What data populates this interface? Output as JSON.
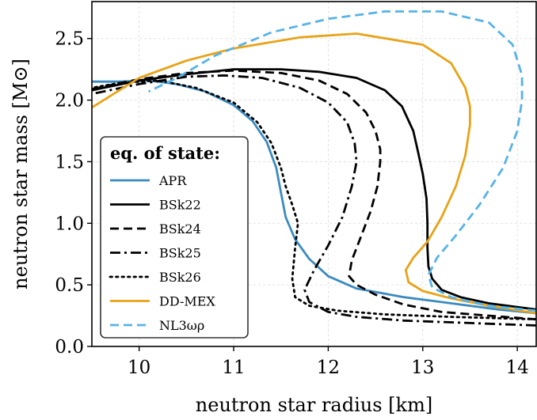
{
  "chart_data": {
    "type": "line",
    "xlabel": "neutron star radius [km]",
    "ylabel": "neutron star mass [M⊙]",
    "xlim": [
      9.5,
      14.2
    ],
    "ylim": [
      0.0,
      2.8
    ],
    "xticks": [
      10,
      11,
      12,
      13,
      14
    ],
    "yticks": [
      0.0,
      0.5,
      1.0,
      1.5,
      2.0,
      2.5
    ],
    "xtick_labels": [
      "10",
      "11",
      "12",
      "13",
      "14"
    ],
    "ytick_labels": [
      "0.0",
      "0.5",
      "1.0",
      "1.5",
      "2.0",
      "2.5"
    ],
    "grid": true,
    "legend_title": "eq. of state:",
    "legend_position": "middle-left",
    "series": [
      {
        "name": "APR",
        "color": "#3b8bc0",
        "dash": "solid",
        "points": [
          [
            14.2,
            0.27
          ],
          [
            13.8,
            0.3
          ],
          [
            13.2,
            0.36
          ],
          [
            12.8,
            0.4
          ],
          [
            12.3,
            0.47
          ],
          [
            12.0,
            0.57
          ],
          [
            11.8,
            0.71
          ],
          [
            11.65,
            0.87
          ],
          [
            11.55,
            1.05
          ],
          [
            11.5,
            1.25
          ],
          [
            11.45,
            1.45
          ],
          [
            11.35,
            1.66
          ],
          [
            11.2,
            1.83
          ],
          [
            11.0,
            1.96
          ],
          [
            10.7,
            2.07
          ],
          [
            10.4,
            2.13
          ],
          [
            10.1,
            2.16
          ],
          [
            9.8,
            2.15
          ],
          [
            9.5,
            2.15
          ]
        ]
      },
      {
        "name": "BSk22",
        "color": "#000000",
        "dash": "solid",
        "points": [
          [
            14.2,
            0.3
          ],
          [
            13.7,
            0.35
          ],
          [
            13.4,
            0.4
          ],
          [
            13.2,
            0.46
          ],
          [
            13.1,
            0.55
          ],
          [
            13.06,
            0.65
          ],
          [
            13.05,
            0.8
          ],
          [
            13.05,
            1.0
          ],
          [
            13.04,
            1.2
          ],
          [
            13.0,
            1.4
          ],
          [
            12.95,
            1.58
          ],
          [
            12.9,
            1.75
          ],
          [
            12.78,
            1.95
          ],
          [
            12.6,
            2.08
          ],
          [
            12.3,
            2.18
          ],
          [
            11.9,
            2.23
          ],
          [
            11.5,
            2.25
          ],
          [
            11.0,
            2.25
          ],
          [
            10.5,
            2.21
          ],
          [
            10.0,
            2.16
          ],
          [
            9.5,
            2.08
          ]
        ]
      },
      {
        "name": "BSk24",
        "color": "#000000",
        "dash": "dashed",
        "points": [
          [
            14.2,
            0.22
          ],
          [
            13.7,
            0.25
          ],
          [
            13.2,
            0.28
          ],
          [
            12.8,
            0.34
          ],
          [
            12.5,
            0.42
          ],
          [
            12.3,
            0.5
          ],
          [
            12.22,
            0.57
          ],
          [
            12.25,
            0.7
          ],
          [
            12.35,
            0.9
          ],
          [
            12.45,
            1.1
          ],
          [
            12.52,
            1.3
          ],
          [
            12.55,
            1.5
          ],
          [
            12.55,
            1.6
          ],
          [
            12.5,
            1.75
          ],
          [
            12.4,
            1.9
          ],
          [
            12.2,
            2.05
          ],
          [
            11.9,
            2.16
          ],
          [
            11.5,
            2.22
          ],
          [
            11.0,
            2.24
          ],
          [
            10.5,
            2.22
          ],
          [
            10.0,
            2.17
          ],
          [
            9.5,
            2.09
          ]
        ]
      },
      {
        "name": "BSk25",
        "color": "#000000",
        "dash": "dashdot",
        "points": [
          [
            14.2,
            0.17
          ],
          [
            13.5,
            0.19
          ],
          [
            12.8,
            0.21
          ],
          [
            12.3,
            0.24
          ],
          [
            12.0,
            0.28
          ],
          [
            11.8,
            0.36
          ],
          [
            11.75,
            0.46
          ],
          [
            11.85,
            0.62
          ],
          [
            12.0,
            0.82
          ],
          [
            12.15,
            1.05
          ],
          [
            12.25,
            1.3
          ],
          [
            12.3,
            1.5
          ],
          [
            12.28,
            1.65
          ],
          [
            12.2,
            1.82
          ],
          [
            12.0,
            1.98
          ],
          [
            11.7,
            2.1
          ],
          [
            11.3,
            2.18
          ],
          [
            10.9,
            2.2
          ],
          [
            10.5,
            2.19
          ],
          [
            10.0,
            2.13
          ],
          [
            9.5,
            2.05
          ]
        ]
      },
      {
        "name": "BSk26",
        "color": "#000000",
        "dash": "dotted",
        "points": [
          [
            14.2,
            0.22
          ],
          [
            13.3,
            0.24
          ],
          [
            12.6,
            0.26
          ],
          [
            12.1,
            0.29
          ],
          [
            11.8,
            0.33
          ],
          [
            11.65,
            0.4
          ],
          [
            11.62,
            0.55
          ],
          [
            11.65,
            0.8
          ],
          [
            11.68,
            1.0
          ],
          [
            11.62,
            1.15
          ],
          [
            11.55,
            1.3
          ],
          [
            11.5,
            1.45
          ],
          [
            11.4,
            1.65
          ],
          [
            11.25,
            1.82
          ],
          [
            11.0,
            1.98
          ],
          [
            10.6,
            2.1
          ],
          [
            10.2,
            2.16
          ],
          [
            9.8,
            2.14
          ],
          [
            9.5,
            2.1
          ]
        ]
      },
      {
        "name": "DD-MEX",
        "color": "#e8a317",
        "dash": "solid",
        "points": [
          [
            14.2,
            0.27
          ],
          [
            13.7,
            0.33
          ],
          [
            13.3,
            0.39
          ],
          [
            13.0,
            0.45
          ],
          [
            12.85,
            0.52
          ],
          [
            12.82,
            0.62
          ],
          [
            12.9,
            0.72
          ],
          [
            13.05,
            0.85
          ],
          [
            13.2,
            1.05
          ],
          [
            13.35,
            1.3
          ],
          [
            13.45,
            1.55
          ],
          [
            13.5,
            1.8
          ],
          [
            13.5,
            1.95
          ],
          [
            13.45,
            2.1
          ],
          [
            13.3,
            2.3
          ],
          [
            13.0,
            2.45
          ],
          [
            12.3,
            2.54
          ],
          [
            11.7,
            2.51
          ],
          [
            11.0,
            2.42
          ],
          [
            10.5,
            2.32
          ],
          [
            10.0,
            2.18
          ],
          [
            9.5,
            1.94
          ]
        ]
      },
      {
        "name": "NL3ωρ",
        "color": "#57b3e6",
        "dash": "dashed",
        "points": [
          [
            14.2,
            0.29
          ],
          [
            13.7,
            0.33
          ],
          [
            13.3,
            0.4
          ],
          [
            13.1,
            0.48
          ],
          [
            13.06,
            0.58
          ],
          [
            13.15,
            0.72
          ],
          [
            13.35,
            0.9
          ],
          [
            13.6,
            1.15
          ],
          [
            13.85,
            1.45
          ],
          [
            14.0,
            1.75
          ],
          [
            14.05,
            2.0
          ],
          [
            14.05,
            2.2
          ],
          [
            13.95,
            2.45
          ],
          [
            13.7,
            2.63
          ],
          [
            13.2,
            2.72
          ],
          [
            12.6,
            2.72
          ],
          [
            12.0,
            2.66
          ],
          [
            11.4,
            2.55
          ],
          [
            10.8,
            2.36
          ],
          [
            10.4,
            2.18
          ],
          [
            10.1,
            2.07
          ]
        ]
      }
    ]
  }
}
